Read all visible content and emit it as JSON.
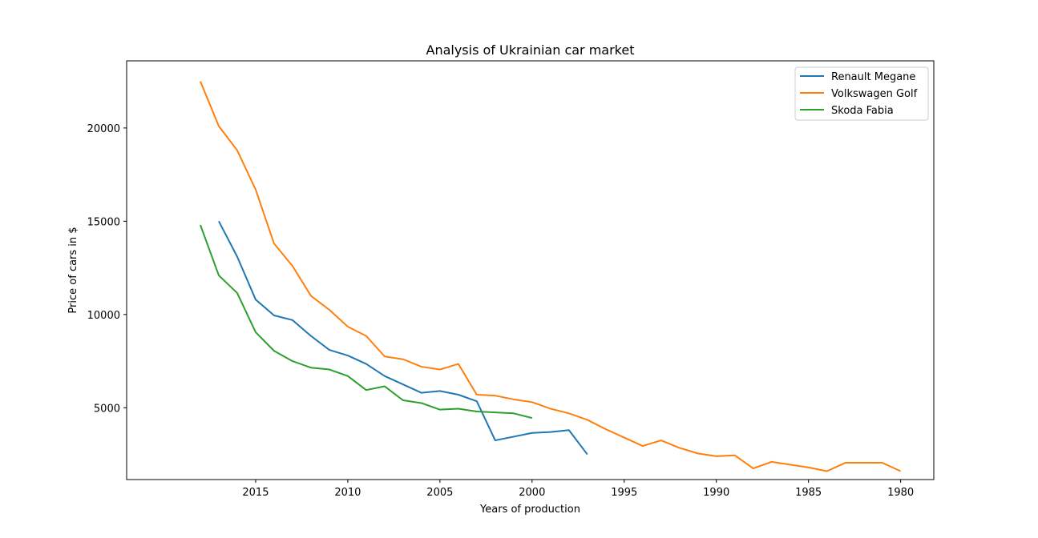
{
  "chart_data": {
    "type": "line",
    "title": "Analysis of Ukrainian car market",
    "xlabel": "Years of production",
    "ylabel": "Price of cars in $",
    "x_inverted": true,
    "xlim": [
      2022.0,
      1978.2
    ],
    "ylim": [
      1150,
      23600
    ],
    "xticks": [
      2015,
      2010,
      2005,
      2000,
      1995,
      1990,
      1985,
      1980
    ],
    "yticks": [
      5000,
      10000,
      15000,
      20000
    ],
    "grid": false,
    "legend_position": "top-right",
    "series": [
      {
        "name": "Renault Megane",
        "color": "#1f77b4",
        "x": [
          2017,
          2016,
          2015,
          2014,
          2013,
          2012,
          2011,
          2010,
          2009,
          2008,
          2007,
          2006,
          2005,
          2004,
          2003,
          2002,
          2001,
          2000,
          1999,
          1998,
          1997
        ],
        "y": [
          15000,
          13100,
          10800,
          9950,
          9700,
          8850,
          8100,
          7800,
          7350,
          6700,
          6250,
          5800,
          5900,
          5700,
          5350,
          3250,
          3450,
          3650,
          3700,
          3800,
          2500
        ]
      },
      {
        "name": "Volkswagen Golf",
        "color": "#ff7f0e",
        "x": [
          2018,
          2017,
          2016,
          2015,
          2014,
          2013,
          2012,
          2011,
          2010,
          2009,
          2008,
          2007,
          2006,
          2005,
          2004,
          2003,
          2002,
          2001,
          2000,
          1999,
          1998,
          1997,
          1996,
          1995,
          1994,
          1993,
          1992,
          1991,
          1990,
          1989,
          1988,
          1987,
          1986,
          1985,
          1984,
          1983,
          1982,
          1981,
          1980
        ],
        "y": [
          22500,
          20100,
          18800,
          16700,
          13800,
          12600,
          11000,
          10250,
          9350,
          8850,
          7750,
          7600,
          7200,
          7050,
          7350,
          5700,
          5650,
          5450,
          5300,
          4950,
          4700,
          4350,
          3850,
          3400,
          2950,
          3250,
          2850,
          2550,
          2400,
          2450,
          1750,
          2100,
          1950,
          1800,
          1600,
          2050,
          2050,
          2050,
          1600
        ]
      },
      {
        "name": "Skoda Fabia",
        "color": "#2ca02c",
        "x": [
          2018,
          2017,
          2016,
          2015,
          2014,
          2013,
          2012,
          2011,
          2010,
          2009,
          2008,
          2007,
          2006,
          2005,
          2004,
          2003,
          2002,
          2001,
          2000
        ],
        "y": [
          14800,
          12100,
          11150,
          9050,
          8050,
          7500,
          7150,
          7050,
          6700,
          5950,
          6150,
          5400,
          5250,
          4900,
          4950,
          4800,
          4750,
          4700,
          4450
        ]
      }
    ]
  }
}
